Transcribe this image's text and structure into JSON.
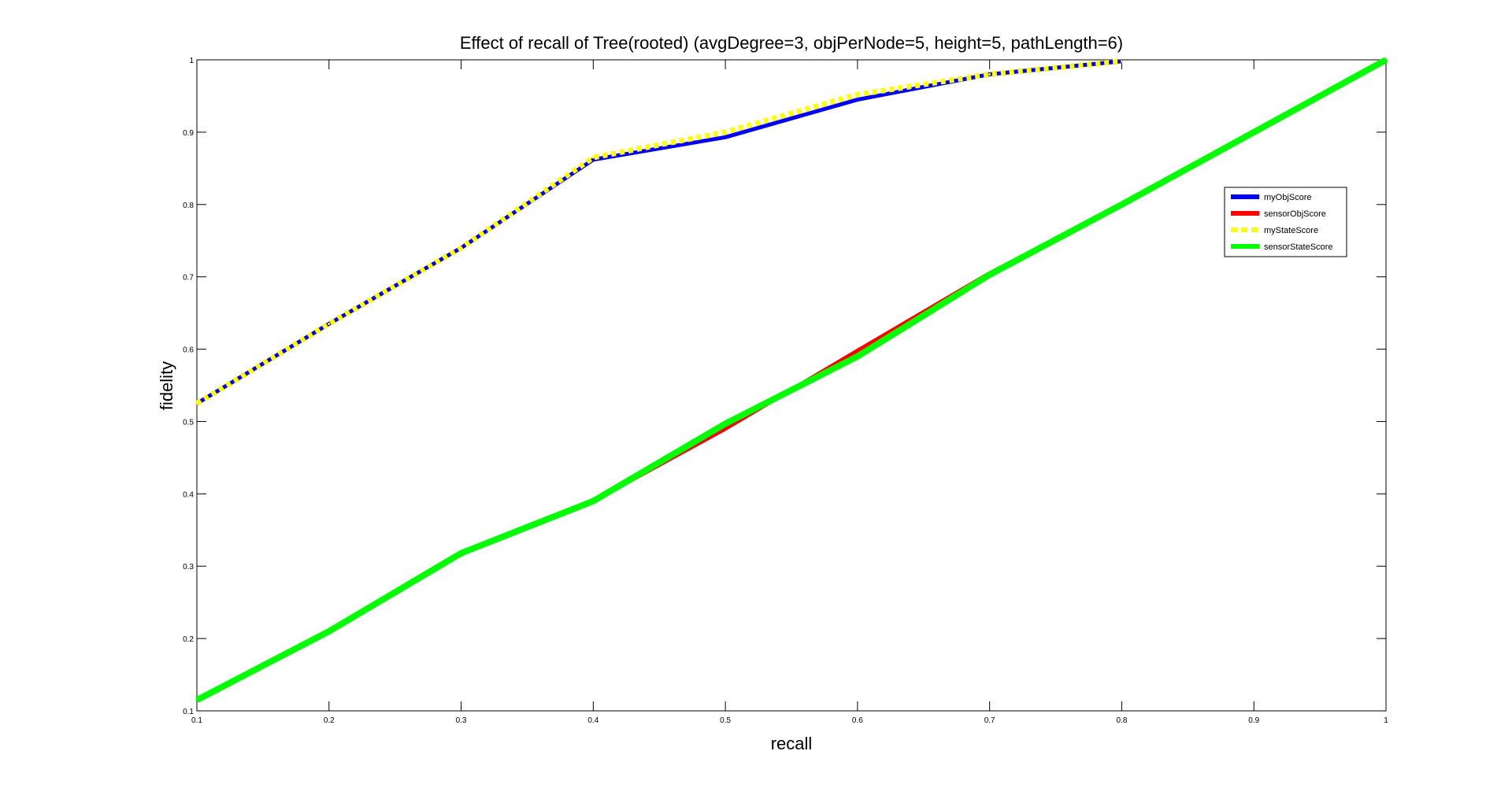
{
  "chart_data": {
    "type": "line",
    "title": "Effect of recall of Tree(rooted) (avgDegree=3, objPerNode=5, height=5, pathLength=6)",
    "xlabel": "recall",
    "ylabel": "fidelity",
    "xlim": [
      0.1,
      1
    ],
    "ylim": [
      0.1,
      1
    ],
    "xticks": [
      0.1,
      0.2,
      0.3,
      0.4,
      0.5,
      0.6,
      0.7,
      0.8,
      0.9,
      1
    ],
    "yticks": [
      0.1,
      0.2,
      0.3,
      0.4,
      0.5,
      0.6,
      0.7,
      0.8,
      0.9,
      1
    ],
    "xtick_labels": [
      "0.1",
      "0.2",
      "0.3",
      "0.4",
      "0.5",
      "0.6",
      "0.7",
      "0.8",
      "0.9",
      "1"
    ],
    "ytick_labels": [
      "0.1",
      "0.2",
      "0.3",
      "0.4",
      "0.5",
      "0.6",
      "0.7",
      "0.8",
      "0.9",
      "1"
    ],
    "grid": false,
    "legend_position": "right",
    "series": [
      {
        "name": "myObjScore",
        "color": "#0000ff",
        "style": "solid",
        "x": [
          0.1,
          0.2,
          0.3,
          0.4,
          0.5,
          0.6,
          0.7,
          0.8
        ],
        "y": [
          0.525,
          0.635,
          0.74,
          0.862,
          0.893,
          0.945,
          0.98,
          0.998
        ]
      },
      {
        "name": "sensorObjScore",
        "color": "#ff0000",
        "style": "solid",
        "x": [
          0.1,
          0.2,
          0.3,
          0.4,
          0.5,
          0.6,
          0.7,
          0.8,
          0.9,
          1
        ],
        "y": [
          0.115,
          0.21,
          0.318,
          0.39,
          0.49,
          0.598,
          0.705,
          0.8,
          0.9,
          1.0
        ]
      },
      {
        "name": "myStateScore",
        "color": "#ffff00",
        "style": "dashed",
        "x": [
          0.1,
          0.2,
          0.3,
          0.4,
          0.5,
          0.6,
          0.7,
          0.8
        ],
        "y": [
          0.525,
          0.635,
          0.74,
          0.865,
          0.9,
          0.952,
          0.98,
          0.998
        ]
      },
      {
        "name": "sensorStateScore",
        "color": "#00ff00",
        "style": "solid",
        "x": [
          0.1,
          0.2,
          0.3,
          0.4,
          0.5,
          0.6,
          0.7,
          0.8,
          0.9,
          1
        ],
        "y": [
          0.115,
          0.21,
          0.318,
          0.39,
          0.497,
          0.59,
          0.703,
          0.8,
          0.9,
          1.0
        ]
      }
    ]
  }
}
